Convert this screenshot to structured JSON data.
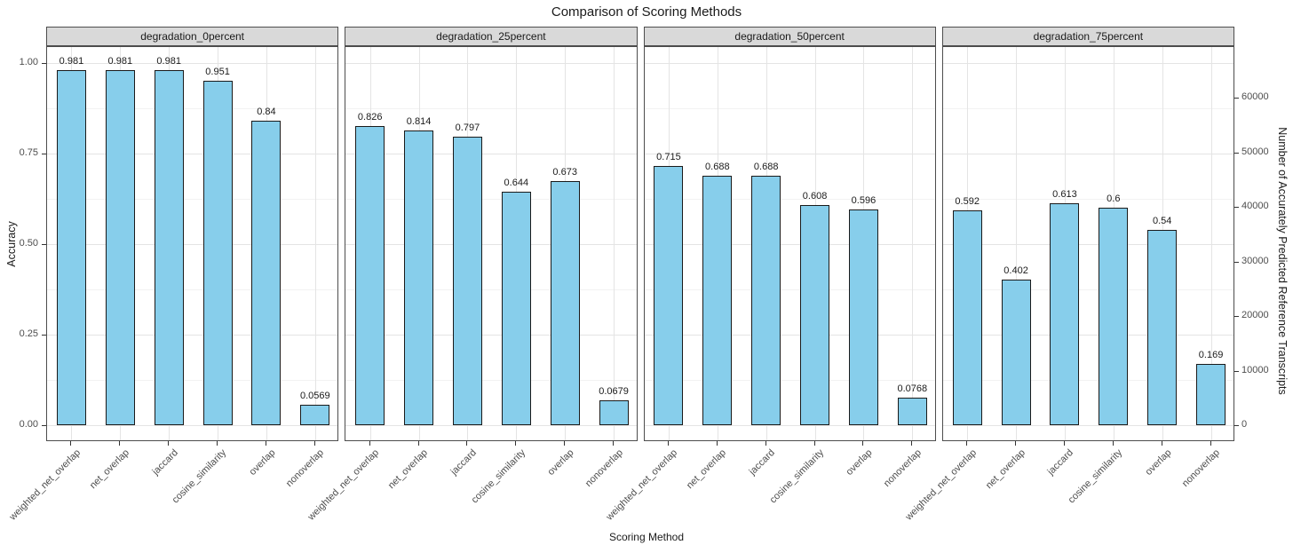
{
  "title": "Comparison of Scoring Methods",
  "colors": {
    "bar_fill": "#87CEEB",
    "bar_stroke": "#1a1a1a",
    "strip_fill": "#d9d9d9",
    "panel_border": "#4d4d4d",
    "grid_major": "#e4e4e4",
    "grid_minor": "#f2f2f2",
    "background": "#ffffff"
  },
  "chart_data": {
    "type": "bar",
    "title": "Comparison of Scoring Methods",
    "xlabel": "Scoring Method",
    "ylabel_left": "Accuracy",
    "ylabel_right": "Number of Accurately Predicted Reference Transcripts",
    "categories": [
      "weighted_net_overlap",
      "net_overlap",
      "jaccard",
      "cosine_similarity",
      "overlap",
      "nonoverlap"
    ],
    "facets": [
      {
        "label": "degradation_0percent",
        "values": [
          0.981,
          0.981,
          0.981,
          0.951,
          0.84,
          0.0569
        ],
        "value_labels": [
          "0.981",
          "0.981",
          "0.981",
          "0.951",
          "0.84",
          "0.0569"
        ]
      },
      {
        "label": "degradation_25percent",
        "values": [
          0.826,
          0.814,
          0.797,
          0.644,
          0.673,
          0.0679
        ],
        "value_labels": [
          "0.826",
          "0.814",
          "0.797",
          "0.644",
          "0.673",
          "0.0679"
        ]
      },
      {
        "label": "degradation_50percent",
        "values": [
          0.715,
          0.688,
          0.688,
          0.608,
          0.596,
          0.0768
        ],
        "value_labels": [
          "0.715",
          "0.688",
          "0.688",
          "0.608",
          "0.596",
          "0.0768"
        ]
      },
      {
        "label": "degradation_75percent",
        "values": [
          0.592,
          0.402,
          0.613,
          0.6,
          0.54,
          0.169
        ],
        "value_labels": [
          "0.592",
          "0.402",
          "0.613",
          "0.6",
          "0.54",
          "0.169"
        ]
      }
    ],
    "yticks_left": {
      "labels": [
        "1.00",
        "0.75",
        "0.50",
        "0.25",
        "0.00"
      ],
      "values": [
        1.0,
        0.75,
        0.5,
        0.25,
        0.0
      ]
    },
    "yticks_right": {
      "labels": [
        "60000",
        "50000",
        "40000",
        "30000",
        "20000",
        "10000",
        "0"
      ],
      "values": [
        60000,
        50000,
        40000,
        30000,
        20000,
        10000,
        0
      ]
    },
    "ylim": [
      0,
      1.05
    ],
    "grid": true,
    "legend": "none",
    "minor_gridlines_at": [
      0.125,
      0.375,
      0.625,
      0.875
    ]
  }
}
